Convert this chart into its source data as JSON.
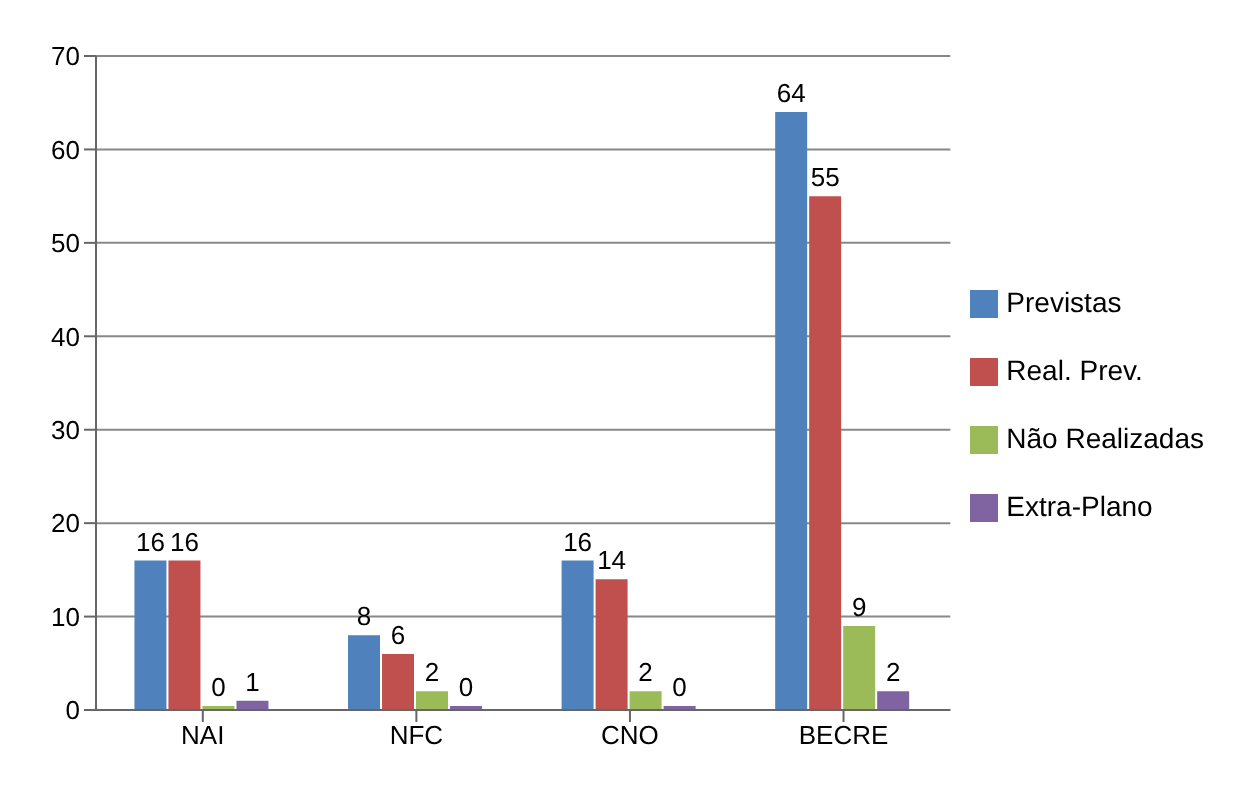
{
  "chart_data": {
    "type": "bar",
    "categories": [
      "NAI",
      "NFC",
      "CNO",
      "BECRE"
    ],
    "series": [
      {
        "name": "Previstas",
        "color": "#4f81bd",
        "values": [
          16,
          8,
          16,
          64
        ]
      },
      {
        "name": "Real. Prev.",
        "color": "#c0504d",
        "values": [
          16,
          6,
          14,
          55
        ]
      },
      {
        "name": "Não Realizadas",
        "color": "#9bbb59",
        "values": [
          0,
          2,
          2,
          9
        ]
      },
      {
        "name": "Extra-Plano",
        "color": "#8064a2",
        "values": [
          1,
          0,
          0,
          2
        ]
      }
    ],
    "ylim": [
      0,
      70
    ],
    "yticks": [
      0,
      10,
      20,
      30,
      40,
      50,
      60,
      70
    ],
    "grid": "y",
    "legend": "right",
    "data_labels": true
  }
}
